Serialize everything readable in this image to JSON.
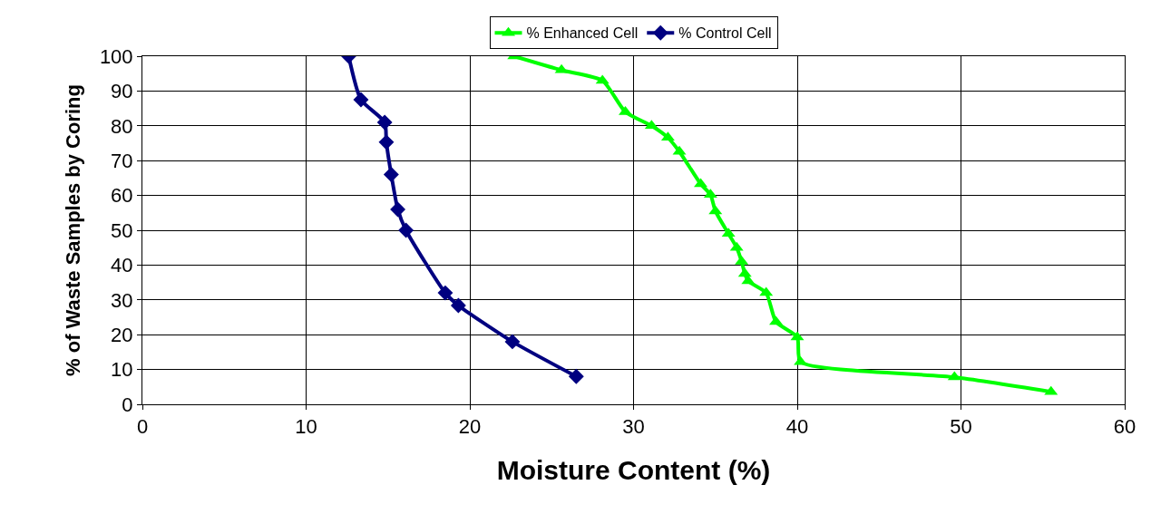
{
  "chart_data": {
    "type": "line",
    "xlabel": "Moisture Content (%)",
    "ylabel": "% of Waste Samples by Coring",
    "series": [
      {
        "name": "% Enhanced Cell",
        "color": "#00ff00",
        "marker": "triangle",
        "x": [
          22.7,
          25.6,
          28.1,
          29.5,
          31.1,
          32.1,
          32.8,
          34.1,
          34.7,
          35.0,
          35.8,
          36.3,
          36.6,
          36.8,
          37.0,
          38.1,
          38.7,
          40.0,
          40.2,
          49.6,
          55.5
        ],
        "values": [
          100,
          96,
          93,
          84,
          80,
          76.6,
          72.6,
          63.3,
          60.2,
          55.5,
          49,
          45,
          41,
          37.5,
          35.4,
          32,
          23.7,
          19.3,
          12.2,
          7.8,
          3.6
        ]
      },
      {
        "name": "% Control Cell",
        "color": "#000080",
        "marker": "diamond",
        "x": [
          12.6,
          13.35,
          14.8,
          14.9,
          15.2,
          15.6,
          16.1,
          18.5,
          19.3,
          22.6,
          26.5
        ],
        "values": [
          100,
          87.5,
          81,
          75.3,
          66,
          56,
          50,
          32,
          28.4,
          18,
          8
        ]
      }
    ],
    "xlim": [
      0,
      60
    ],
    "xticks": [
      0,
      10,
      20,
      30,
      40,
      50,
      60
    ],
    "ylim": [
      0,
      100
    ],
    "yticks": [
      0,
      10,
      20,
      30,
      40,
      50,
      60,
      70,
      80,
      90,
      100
    ],
    "grid": true,
    "legend": "top",
    "line_style": "solid"
  }
}
